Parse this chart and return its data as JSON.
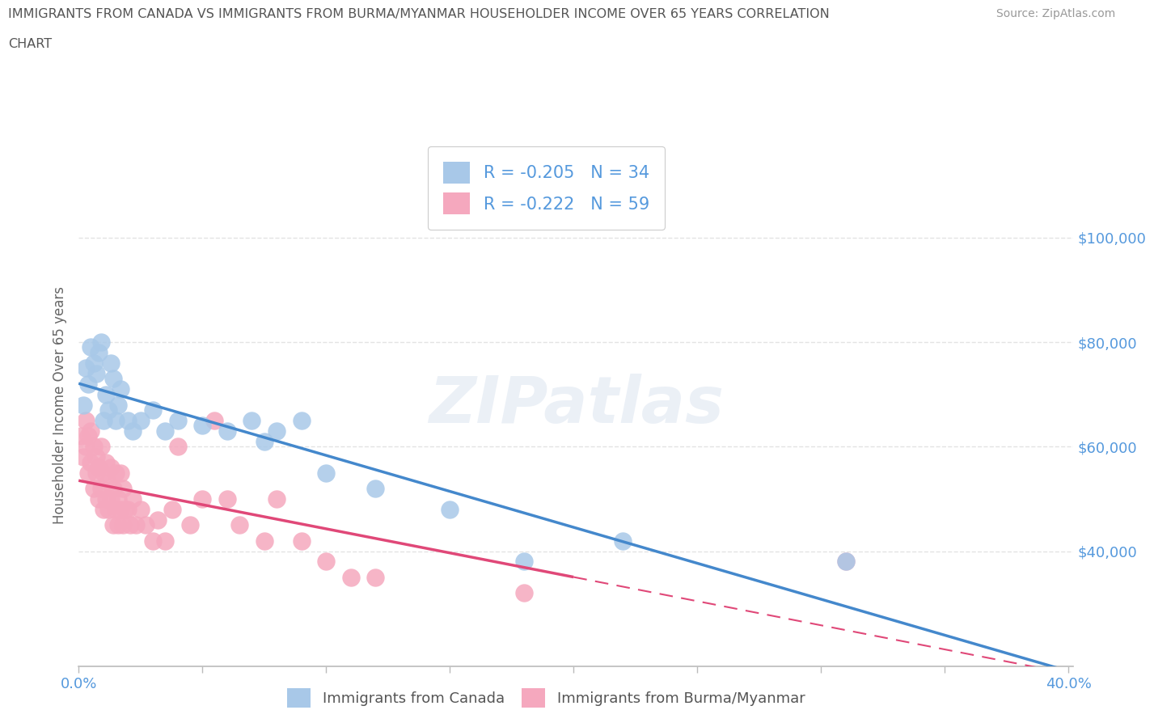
{
  "title_line1": "IMMIGRANTS FROM CANADA VS IMMIGRANTS FROM BURMA/MYANMAR HOUSEHOLDER INCOME OVER 65 YEARS CORRELATION",
  "title_line2": "CHART",
  "source": "Source: ZipAtlas.com",
  "ylabel": "Householder Income Over 65 years",
  "xlim": [
    0.0,
    0.402
  ],
  "ylim": [
    18000,
    118000
  ],
  "xticks": [
    0.0,
    0.05,
    0.1,
    0.15,
    0.2,
    0.25,
    0.3,
    0.35,
    0.4
  ],
  "xtick_labels": [
    "0.0%",
    "",
    "",
    "",
    "",
    "",
    "",
    "",
    "40.0%"
  ],
  "yticks_right": [
    40000,
    60000,
    80000,
    100000
  ],
  "ytick_labels_right": [
    "$40,000",
    "$60,000",
    "$80,000",
    "$100,000"
  ],
  "watermark": "ZIPatlas",
  "canada_color": "#a8c8e8",
  "burma_color": "#f5a8be",
  "canada_line_color": "#4488cc",
  "burma_line_color": "#e04878",
  "canada_R": -0.205,
  "canada_N": 34,
  "burma_R": -0.222,
  "burma_N": 59,
  "canada_scatter_x": [
    0.002,
    0.003,
    0.004,
    0.005,
    0.006,
    0.007,
    0.008,
    0.009,
    0.01,
    0.011,
    0.012,
    0.013,
    0.014,
    0.015,
    0.016,
    0.017,
    0.02,
    0.022,
    0.025,
    0.03,
    0.035,
    0.04,
    0.05,
    0.06,
    0.07,
    0.075,
    0.08,
    0.09,
    0.1,
    0.12,
    0.15,
    0.18,
    0.22,
    0.31
  ],
  "canada_scatter_y": [
    68000,
    75000,
    72000,
    79000,
    76000,
    74000,
    78000,
    80000,
    65000,
    70000,
    67000,
    76000,
    73000,
    65000,
    68000,
    71000,
    65000,
    63000,
    65000,
    67000,
    63000,
    65000,
    64000,
    63000,
    65000,
    61000,
    63000,
    65000,
    55000,
    52000,
    48000,
    38000,
    42000,
    38000
  ],
  "burma_scatter_x": [
    0.001,
    0.002,
    0.003,
    0.003,
    0.004,
    0.004,
    0.005,
    0.005,
    0.006,
    0.006,
    0.007,
    0.007,
    0.008,
    0.008,
    0.009,
    0.009,
    0.01,
    0.01,
    0.011,
    0.011,
    0.012,
    0.012,
    0.013,
    0.013,
    0.014,
    0.014,
    0.015,
    0.015,
    0.016,
    0.016,
    0.017,
    0.017,
    0.018,
    0.018,
    0.019,
    0.02,
    0.021,
    0.022,
    0.023,
    0.025,
    0.027,
    0.03,
    0.032,
    0.035,
    0.038,
    0.04,
    0.045,
    0.05,
    0.055,
    0.06,
    0.065,
    0.075,
    0.08,
    0.09,
    0.1,
    0.11,
    0.12,
    0.18,
    0.31
  ],
  "burma_scatter_y": [
    62000,
    58000,
    65000,
    60000,
    55000,
    62000,
    57000,
    63000,
    52000,
    60000,
    55000,
    58000,
    50000,
    56000,
    52000,
    60000,
    48000,
    55000,
    50000,
    57000,
    48000,
    53000,
    50000,
    56000,
    45000,
    52000,
    48000,
    55000,
    45000,
    50000,
    48000,
    55000,
    45000,
    52000,
    48000,
    48000,
    45000,
    50000,
    45000,
    48000,
    45000,
    42000,
    46000,
    42000,
    48000,
    60000,
    45000,
    50000,
    65000,
    50000,
    45000,
    42000,
    50000,
    42000,
    38000,
    35000,
    35000,
    32000,
    38000
  ],
  "background_color": "#ffffff",
  "grid_color": "#dddddd",
  "title_color": "#555555",
  "axis_color": "#5599dd"
}
